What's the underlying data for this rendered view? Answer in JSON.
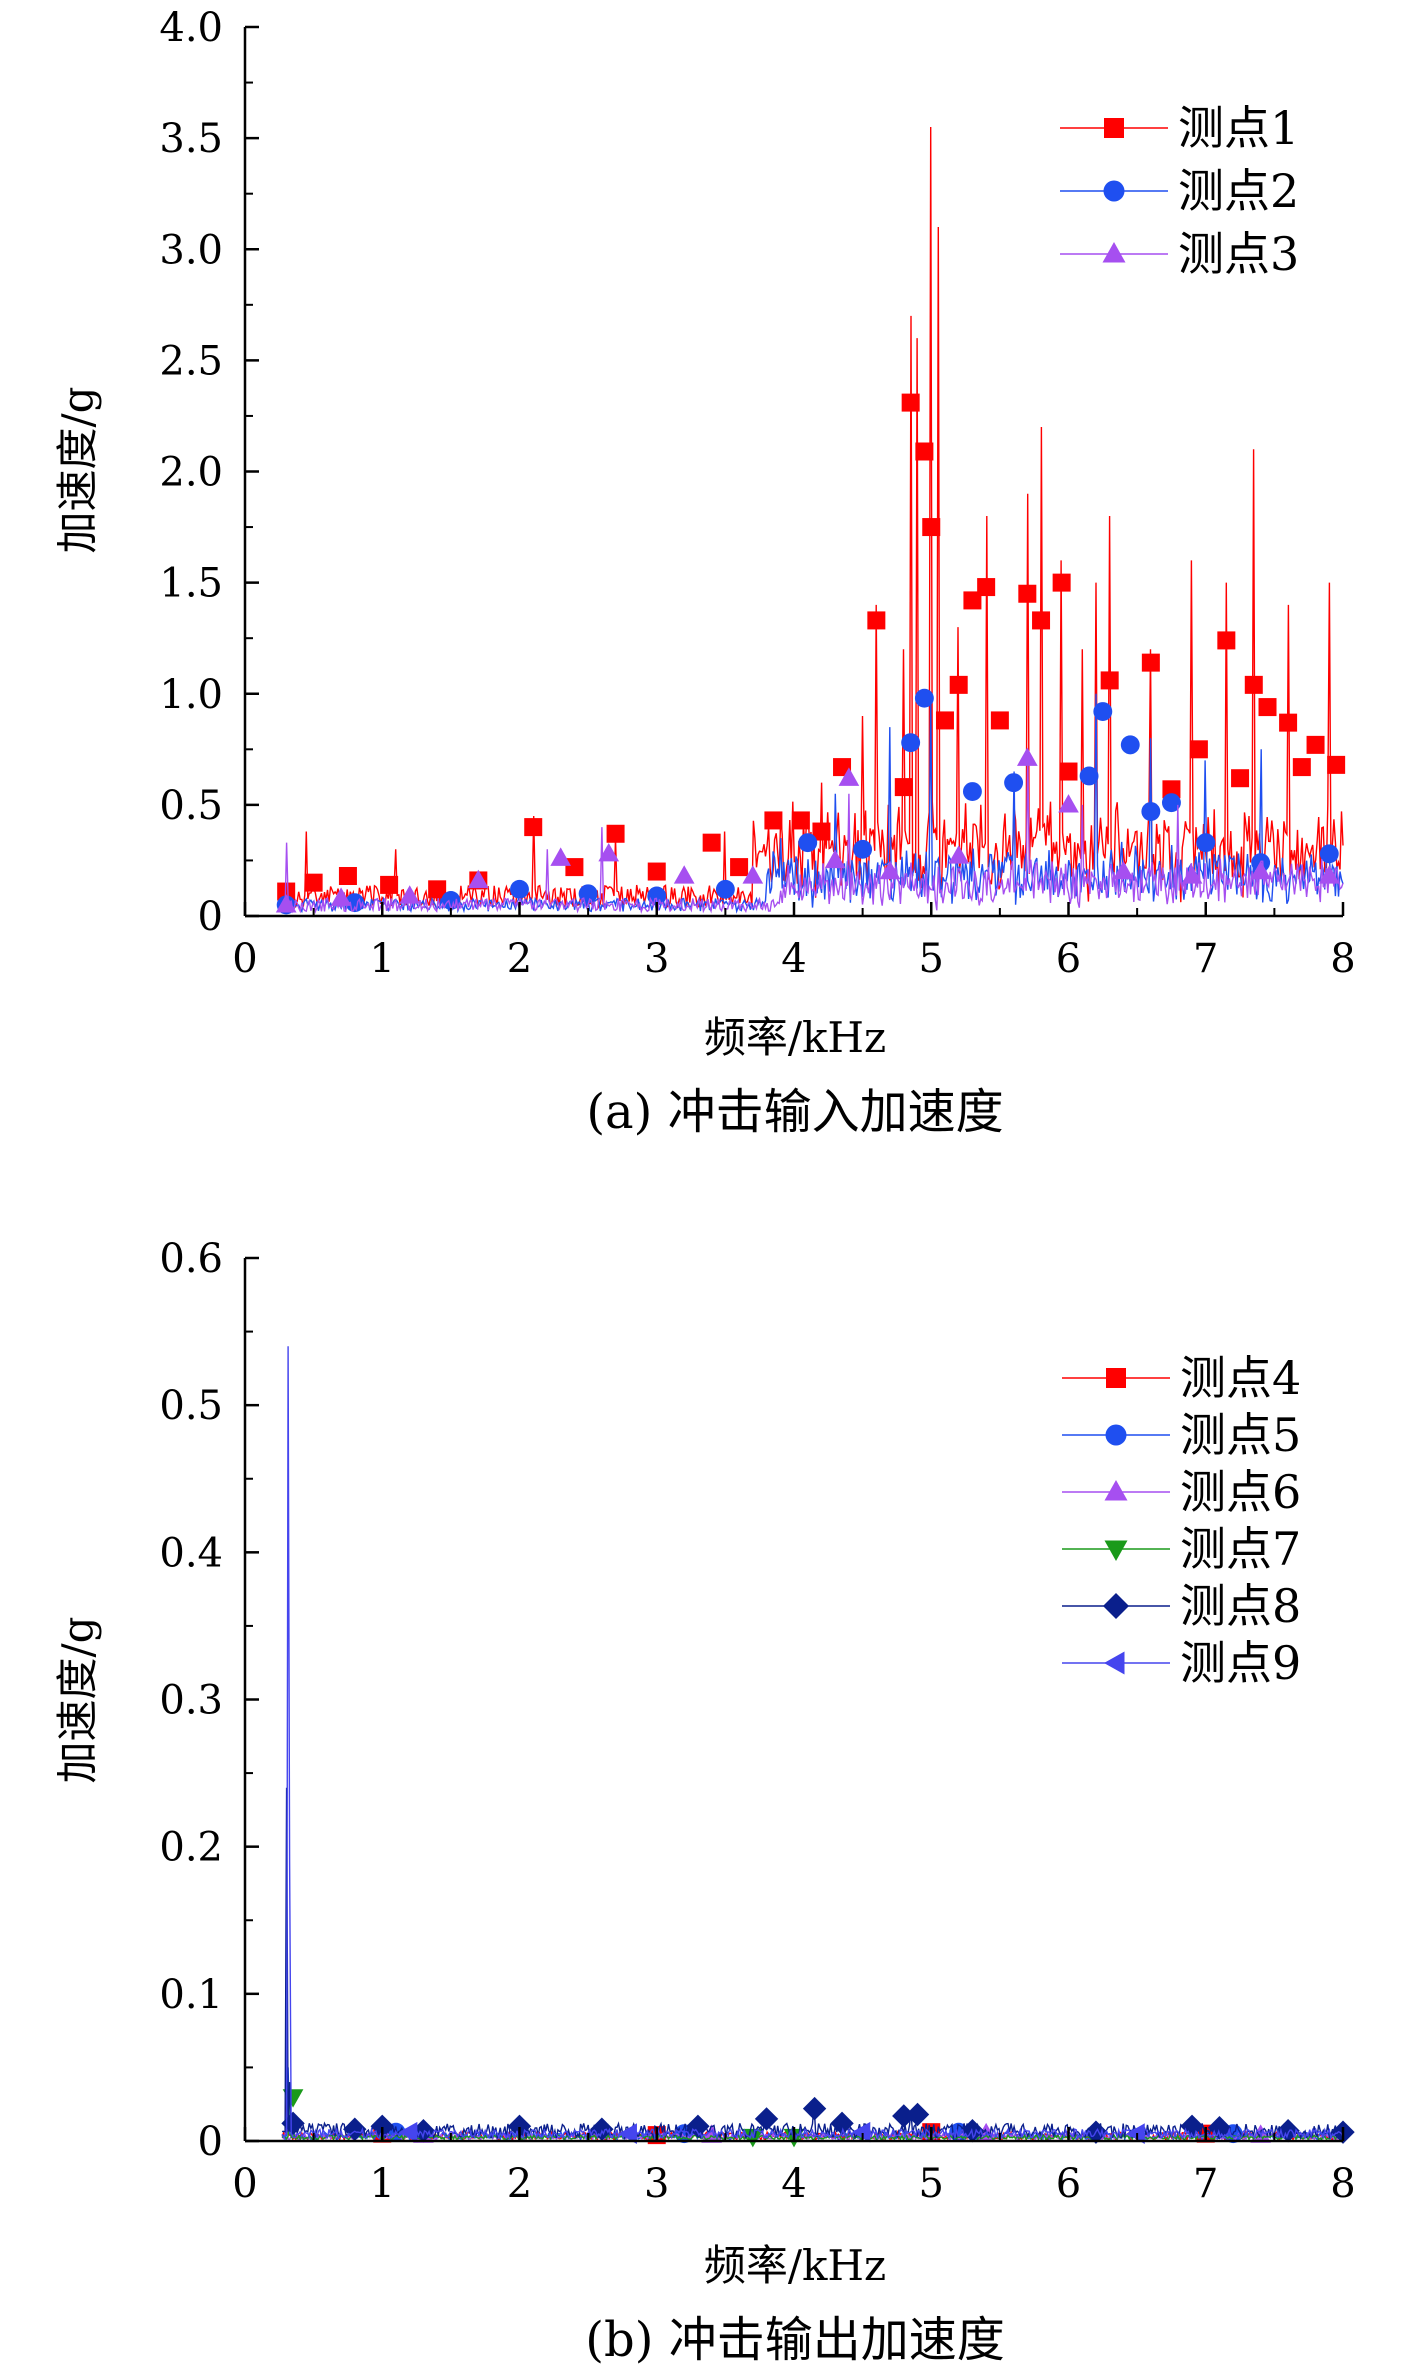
{
  "chart_data": [
    {
      "type": "line",
      "caption": "(a) 冲击输入加速度",
      "xlabel": "频率/kHz",
      "ylabel": "加速度/g",
      "xlim": [
        0,
        8
      ],
      "ylim": [
        0,
        4.0
      ],
      "x_ticks": [
        "0",
        "1",
        "2",
        "3",
        "4",
        "5",
        "6",
        "7",
        "8"
      ],
      "y_ticks": [
        "0",
        "0.5",
        "1.0",
        "1.5",
        "2.0",
        "2.5",
        "3.0",
        "3.5",
        "4.0"
      ],
      "legend_position": "top-right",
      "series": [
        {
          "name": "测点1",
          "color": "#ff0000",
          "marker": "square",
          "peaks": [
            [
              0.45,
              0.38
            ],
            [
              1.1,
              0.3
            ],
            [
              2.1,
              0.45
            ],
            [
              2.7,
              0.35
            ],
            [
              3.5,
              0.38
            ],
            [
              3.9,
              0.45
            ],
            [
              4.2,
              0.6
            ],
            [
              4.5,
              0.9
            ],
            [
              4.6,
              1.4
            ],
            [
              4.8,
              1.2
            ],
            [
              4.85,
              2.7
            ],
            [
              4.9,
              2.6
            ],
            [
              5.0,
              3.55
            ],
            [
              5.05,
              3.1
            ],
            [
              5.2,
              1.3
            ],
            [
              5.4,
              1.8
            ],
            [
              5.7,
              1.9
            ],
            [
              5.8,
              2.2
            ],
            [
              5.95,
              1.6
            ],
            [
              6.1,
              1.2
            ],
            [
              6.2,
              1.5
            ],
            [
              6.3,
              1.8
            ],
            [
              6.6,
              1.2
            ],
            [
              6.9,
              1.6
            ],
            [
              7.15,
              1.5
            ],
            [
              7.35,
              2.1
            ],
            [
              7.6,
              1.4
            ],
            [
              7.9,
              1.5
            ]
          ],
          "markers": [
            [
              0.3,
              0.11
            ],
            [
              0.5,
              0.15
            ],
            [
              0.75,
              0.18
            ],
            [
              1.05,
              0.14
            ],
            [
              1.4,
              0.12
            ],
            [
              1.7,
              0.16
            ],
            [
              2.1,
              0.4
            ],
            [
              2.4,
              0.22
            ],
            [
              2.7,
              0.37
            ],
            [
              3.0,
              0.2
            ],
            [
              3.4,
              0.33
            ],
            [
              3.6,
              0.22
            ],
            [
              3.85,
              0.43
            ],
            [
              4.05,
              0.43
            ],
            [
              4.2,
              0.38
            ],
            [
              4.35,
              0.67
            ],
            [
              4.6,
              1.33
            ],
            [
              4.8,
              0.58
            ],
            [
              4.85,
              2.31
            ],
            [
              4.95,
              2.09
            ],
            [
              5.0,
              1.75
            ],
            [
              5.1,
              0.88
            ],
            [
              5.2,
              1.04
            ],
            [
              5.3,
              1.42
            ],
            [
              5.4,
              1.48
            ],
            [
              5.5,
              0.88
            ],
            [
              5.7,
              1.45
            ],
            [
              5.8,
              1.33
            ],
            [
              5.95,
              1.5
            ],
            [
              6.0,
              0.65
            ],
            [
              6.3,
              1.06
            ],
            [
              6.6,
              1.14
            ],
            [
              6.75,
              0.57
            ],
            [
              6.95,
              0.75
            ],
            [
              7.15,
              1.24
            ],
            [
              7.25,
              0.62
            ],
            [
              7.35,
              1.04
            ],
            [
              7.45,
              0.94
            ],
            [
              7.6,
              0.87
            ],
            [
              7.7,
              0.67
            ],
            [
              7.8,
              0.77
            ],
            [
              7.95,
              0.68
            ]
          ],
          "floor": [
            0.04,
            0.14
          ],
          "rise": [
            [
              3.7,
              0.12,
              0.3
            ]
          ]
        },
        {
          "name": "测点2",
          "color": "#1f4ff0",
          "marker": "circle",
          "peaks": [
            [
              3.9,
              0.35
            ],
            [
              4.3,
              0.55
            ],
            [
              4.7,
              0.85
            ],
            [
              5.0,
              1.0
            ],
            [
              5.6,
              0.65
            ],
            [
              6.2,
              1.0
            ],
            [
              6.6,
              0.8
            ],
            [
              7.0,
              0.7
            ],
            [
              7.4,
              0.75
            ]
          ],
          "markers": [
            [
              0.3,
              0.05
            ],
            [
              0.8,
              0.06
            ],
            [
              1.5,
              0.07
            ],
            [
              2.0,
              0.12
            ],
            [
              2.5,
              0.1
            ],
            [
              3.0,
              0.09
            ],
            [
              3.5,
              0.12
            ],
            [
              4.1,
              0.33
            ],
            [
              4.5,
              0.3
            ],
            [
              4.85,
              0.78
            ],
            [
              4.95,
              0.98
            ],
            [
              5.3,
              0.56
            ],
            [
              5.6,
              0.6
            ],
            [
              6.15,
              0.63
            ],
            [
              6.25,
              0.92
            ],
            [
              6.45,
              0.77
            ],
            [
              6.6,
              0.47
            ],
            [
              6.75,
              0.51
            ],
            [
              7.0,
              0.33
            ],
            [
              7.4,
              0.24
            ],
            [
              7.9,
              0.28
            ]
          ],
          "floor": [
            0.02,
            0.08
          ],
          "rise": [
            [
              3.8,
              0.06,
              0.2
            ]
          ]
        },
        {
          "name": "测点3",
          "color": "#a64ff0",
          "marker": "triangle-up",
          "peaks": [
            [
              0.3,
              0.33
            ],
            [
              2.2,
              0.3
            ],
            [
              2.6,
              0.4
            ],
            [
              4.4,
              0.55
            ],
            [
              5.7,
              0.75
            ],
            [
              6.1,
              0.5
            ],
            [
              6.8,
              0.5
            ]
          ],
          "markers": [
            [
              0.3,
              0.05
            ],
            [
              0.7,
              0.08
            ],
            [
              1.2,
              0.09
            ],
            [
              1.7,
              0.16
            ],
            [
              2.3,
              0.26
            ],
            [
              2.65,
              0.28
            ],
            [
              3.2,
              0.18
            ],
            [
              3.7,
              0.18
            ],
            [
              4.3,
              0.25
            ],
            [
              4.4,
              0.62
            ],
            [
              4.7,
              0.2
            ],
            [
              5.2,
              0.27
            ],
            [
              5.7,
              0.71
            ],
            [
              6.0,
              0.5
            ],
            [
              6.4,
              0.2
            ],
            [
              6.9,
              0.18
            ],
            [
              7.4,
              0.2
            ],
            [
              7.9,
              0.18
            ]
          ],
          "floor": [
            0.02,
            0.08
          ],
          "rise": [
            [
              3.9,
              0.05,
              0.15
            ]
          ]
        }
      ]
    },
    {
      "type": "line",
      "caption": "(b) 冲击输出加速度",
      "xlabel": "频率/kHz",
      "ylabel": "加速度/g",
      "xlim": [
        0,
        8
      ],
      "ylim": [
        0,
        0.6
      ],
      "x_ticks": [
        "0",
        "1",
        "2",
        "3",
        "4",
        "5",
        "6",
        "7",
        "8"
      ],
      "y_ticks": [
        "0",
        "0.1",
        "0.2",
        "0.3",
        "0.4",
        "0.5",
        "0.6"
      ],
      "legend_position": "top-right",
      "series": [
        {
          "name": "测点4",
          "color": "#ff0000",
          "marker": "square",
          "peaks": [
            [
              0.3,
              0.03
            ]
          ],
          "markers": [
            [
              1.0,
              0.005
            ],
            [
              3.0,
              0.004
            ],
            [
              5.0,
              0.006
            ],
            [
              7.0,
              0.005
            ]
          ],
          "floor": [
            0.001,
            0.006
          ]
        },
        {
          "name": "测点5",
          "color": "#1f4ff0",
          "marker": "circle",
          "peaks": [
            [
              0.31,
              0.05
            ]
          ],
          "markers": [
            [
              1.1,
              0.006
            ],
            [
              3.2,
              0.005
            ],
            [
              5.2,
              0.006
            ],
            [
              7.2,
              0.005
            ]
          ],
          "floor": [
            0.001,
            0.006
          ]
        },
        {
          "name": "测点6",
          "color": "#a64ff0",
          "marker": "triangle-up",
          "peaks": [
            [
              0.3,
              0.02
            ]
          ],
          "markers": [
            [
              1.3,
              0.004
            ],
            [
              3.4,
              0.004
            ],
            [
              5.4,
              0.005
            ],
            [
              7.4,
              0.004
            ]
          ],
          "floor": [
            0.001,
            0.005
          ]
        },
        {
          "name": "测点7",
          "color": "#1a9a1a",
          "marker": "triangle-down",
          "peaks": [
            [
              0.32,
              0.04
            ]
          ],
          "markers": [
            [
              0.35,
              0.03
            ],
            [
              3.7,
              0.003
            ],
            [
              4.0,
              0.003
            ]
          ],
          "floor": [
            0.001,
            0.004
          ]
        },
        {
          "name": "测点8",
          "color": "#0a1f8c",
          "marker": "diamond",
          "peaks": [
            [
              0.3,
              0.24
            ],
            [
              0.33,
              0.04
            ],
            [
              4.15,
              0.025
            ],
            [
              4.85,
              0.02
            ]
          ],
          "markers": [
            [
              0.35,
              0.012
            ],
            [
              0.8,
              0.008
            ],
            [
              1.0,
              0.01
            ],
            [
              1.3,
              0.007
            ],
            [
              2.0,
              0.01
            ],
            [
              2.6,
              0.008
            ],
            [
              3.3,
              0.01
            ],
            [
              3.8,
              0.015
            ],
            [
              4.15,
              0.022
            ],
            [
              4.35,
              0.012
            ],
            [
              4.8,
              0.017
            ],
            [
              4.9,
              0.018
            ],
            [
              5.3,
              0.007
            ],
            [
              6.2,
              0.006
            ],
            [
              6.9,
              0.01
            ],
            [
              7.1,
              0.009
            ],
            [
              7.6,
              0.007
            ],
            [
              8.0,
              0.006
            ]
          ],
          "floor": [
            0.002,
            0.012
          ]
        },
        {
          "name": "测点9",
          "color": "#4545ee",
          "marker": "triangle-left",
          "peaks": [
            [
              0.31,
              0.54
            ],
            [
              0.32,
              0.19
            ]
          ],
          "markers": [
            [
              1.2,
              0.006
            ],
            [
              2.8,
              0.005
            ],
            [
              4.5,
              0.006
            ],
            [
              6.5,
              0.005
            ]
          ],
          "floor": [
            0.002,
            0.008
          ]
        }
      ]
    }
  ]
}
